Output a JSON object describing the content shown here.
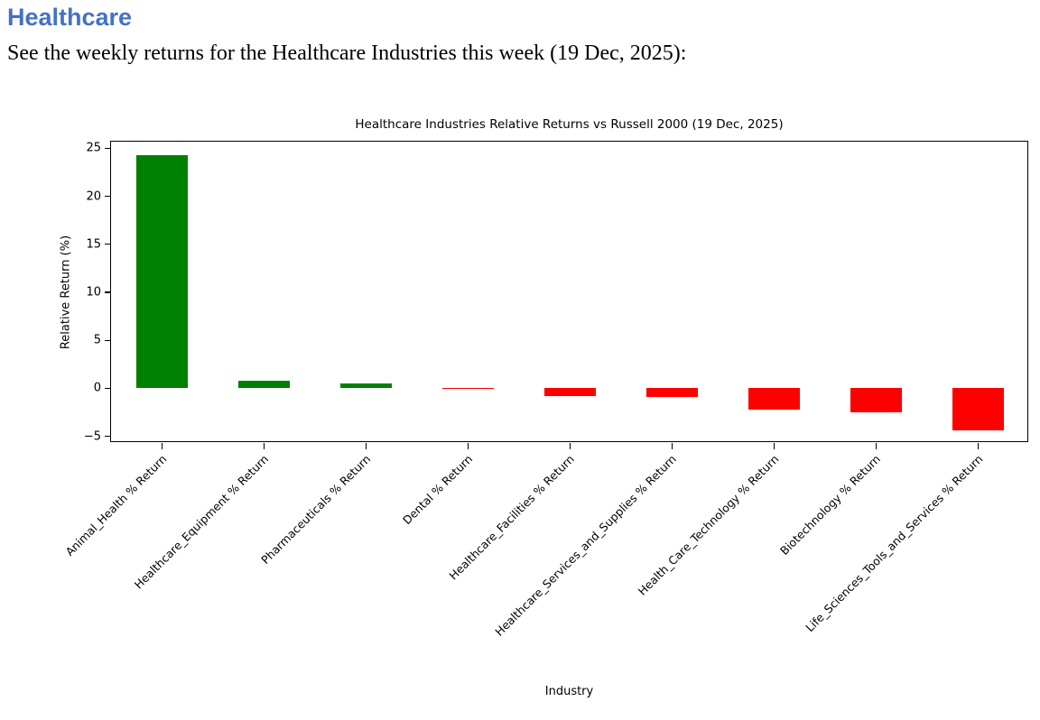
{
  "page": {
    "heading": "Healthcare",
    "intro": "See the weekly returns for the Healthcare Industries this week (19 Dec, 2025):"
  },
  "colors": {
    "heading": "#4472C4",
    "positive": "#008000",
    "negative": "#FF0000",
    "axis": "#000000",
    "background": "#FFFFFF"
  },
  "chart_data": {
    "type": "bar",
    "title": "Healthcare Industries Relative Returns vs Russell 2000 (19 Dec, 2025)",
    "xlabel": "Industry",
    "ylabel": "Relative Return (%)",
    "categories": [
      "Animal_Health % Return",
      "Healthcare_Equipment % Return",
      "Pharmaceuticals % Return",
      "Dental % Return",
      "Healthcare_Facilities % Return",
      "Healthcare_Services_and_Supplies % Return",
      "Health_Care_Technology % Return",
      "Biotechnology % Return",
      "Life_Sciences_Tools_and_Services % Return"
    ],
    "values": [
      24.3,
      0.8,
      0.5,
      -0.1,
      -0.8,
      -0.9,
      -2.2,
      -2.5,
      -4.4
    ],
    "bar_colors": [
      "green",
      "green",
      "green",
      "red",
      "red",
      "red",
      "red",
      "red",
      "red"
    ],
    "ylim": [
      -5.7,
      25.7
    ],
    "yticks": [
      25,
      20,
      15,
      10,
      5,
      0,
      -5
    ],
    "xtick_rotation_deg": 45,
    "bar_width_fraction": 0.5,
    "grid": false,
    "legend": false
  }
}
